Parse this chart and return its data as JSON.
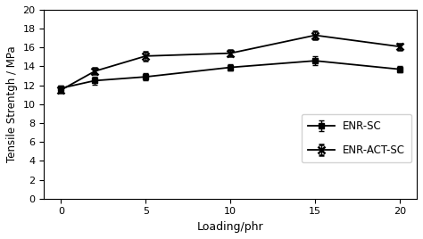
{
  "x": [
    0,
    2,
    5,
    10,
    15,
    20
  ],
  "enr_sc_y": [
    11.7,
    12.5,
    12.9,
    13.9,
    14.6,
    13.7
  ],
  "enr_act_sc_y": [
    11.5,
    13.5,
    15.1,
    15.4,
    17.3,
    16.1
  ],
  "enr_sc_err": [
    0.3,
    0.4,
    0.35,
    0.3,
    0.45,
    0.3
  ],
  "enr_act_sc_err": [
    0.3,
    0.35,
    0.5,
    0.35,
    0.4,
    0.35
  ],
  "xlabel": "Loading/phr",
  "ylabel": "Tensile Strentgh / MPa",
  "ylim": [
    0,
    20
  ],
  "yticks": [
    0,
    2,
    4,
    6,
    8,
    10,
    12,
    14,
    16,
    18,
    20
  ],
  "xticks": [
    0,
    5,
    10,
    15,
    20
  ],
  "legend_enr_sc": "ENR-SC",
  "legend_enr_act_sc": "ENR-ACT-SC",
  "line_color": "#000000",
  "background_color": "#ffffff"
}
